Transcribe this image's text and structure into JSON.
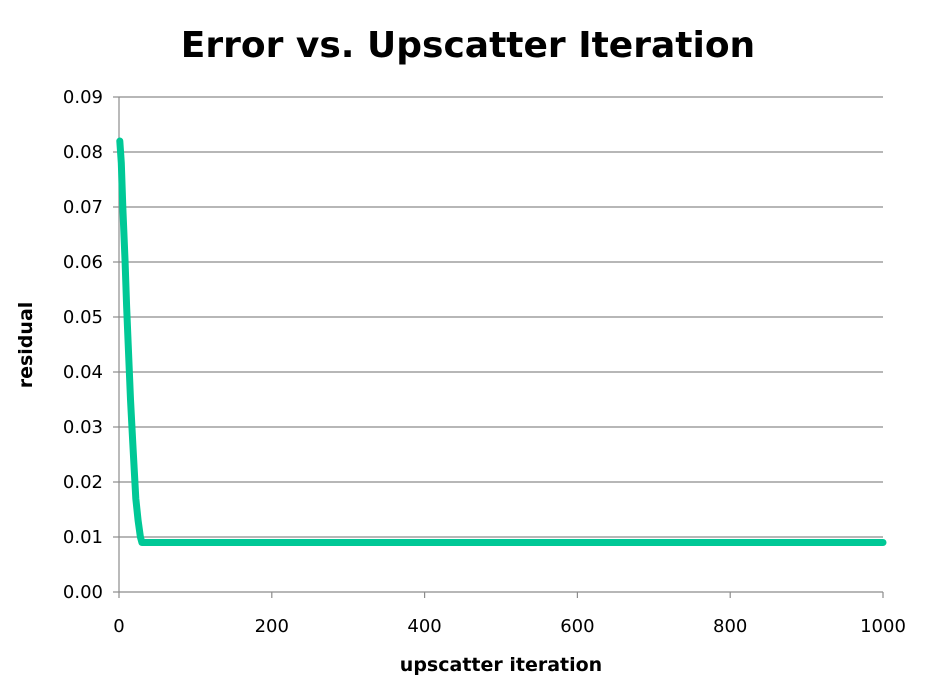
{
  "chart_data": {
    "type": "line",
    "title": "Error vs. Upscatter Iteration",
    "xlabel": "upscatter iteration",
    "ylabel": "residual",
    "xlim": [
      0,
      1000
    ],
    "ylim": [
      0,
      0.09
    ],
    "x_ticks": [
      "0",
      "200",
      "400",
      "600",
      "800",
      "1000"
    ],
    "y_ticks": [
      "0.00",
      "0.01",
      "0.02",
      "0.03",
      "0.04",
      "0.05",
      "0.06",
      "0.07",
      "0.08",
      "0.09"
    ],
    "grid": "horizontal",
    "legend": "none",
    "series": [
      {
        "color": "#00c896",
        "x": [
          1,
          3,
          5,
          8,
          10,
          12,
          15,
          18,
          20,
          22,
          25,
          28,
          30,
          35,
          40,
          50,
          100,
          200,
          300,
          400,
          500,
          600,
          700,
          800,
          900,
          1000
        ],
        "y": [
          0.082,
          0.078,
          0.07,
          0.06,
          0.052,
          0.045,
          0.035,
          0.027,
          0.022,
          0.017,
          0.013,
          0.01,
          0.009,
          0.009,
          0.009,
          0.009,
          0.009,
          0.009,
          0.009,
          0.009,
          0.009,
          0.009,
          0.009,
          0.009,
          0.009,
          0.009
        ]
      }
    ]
  }
}
